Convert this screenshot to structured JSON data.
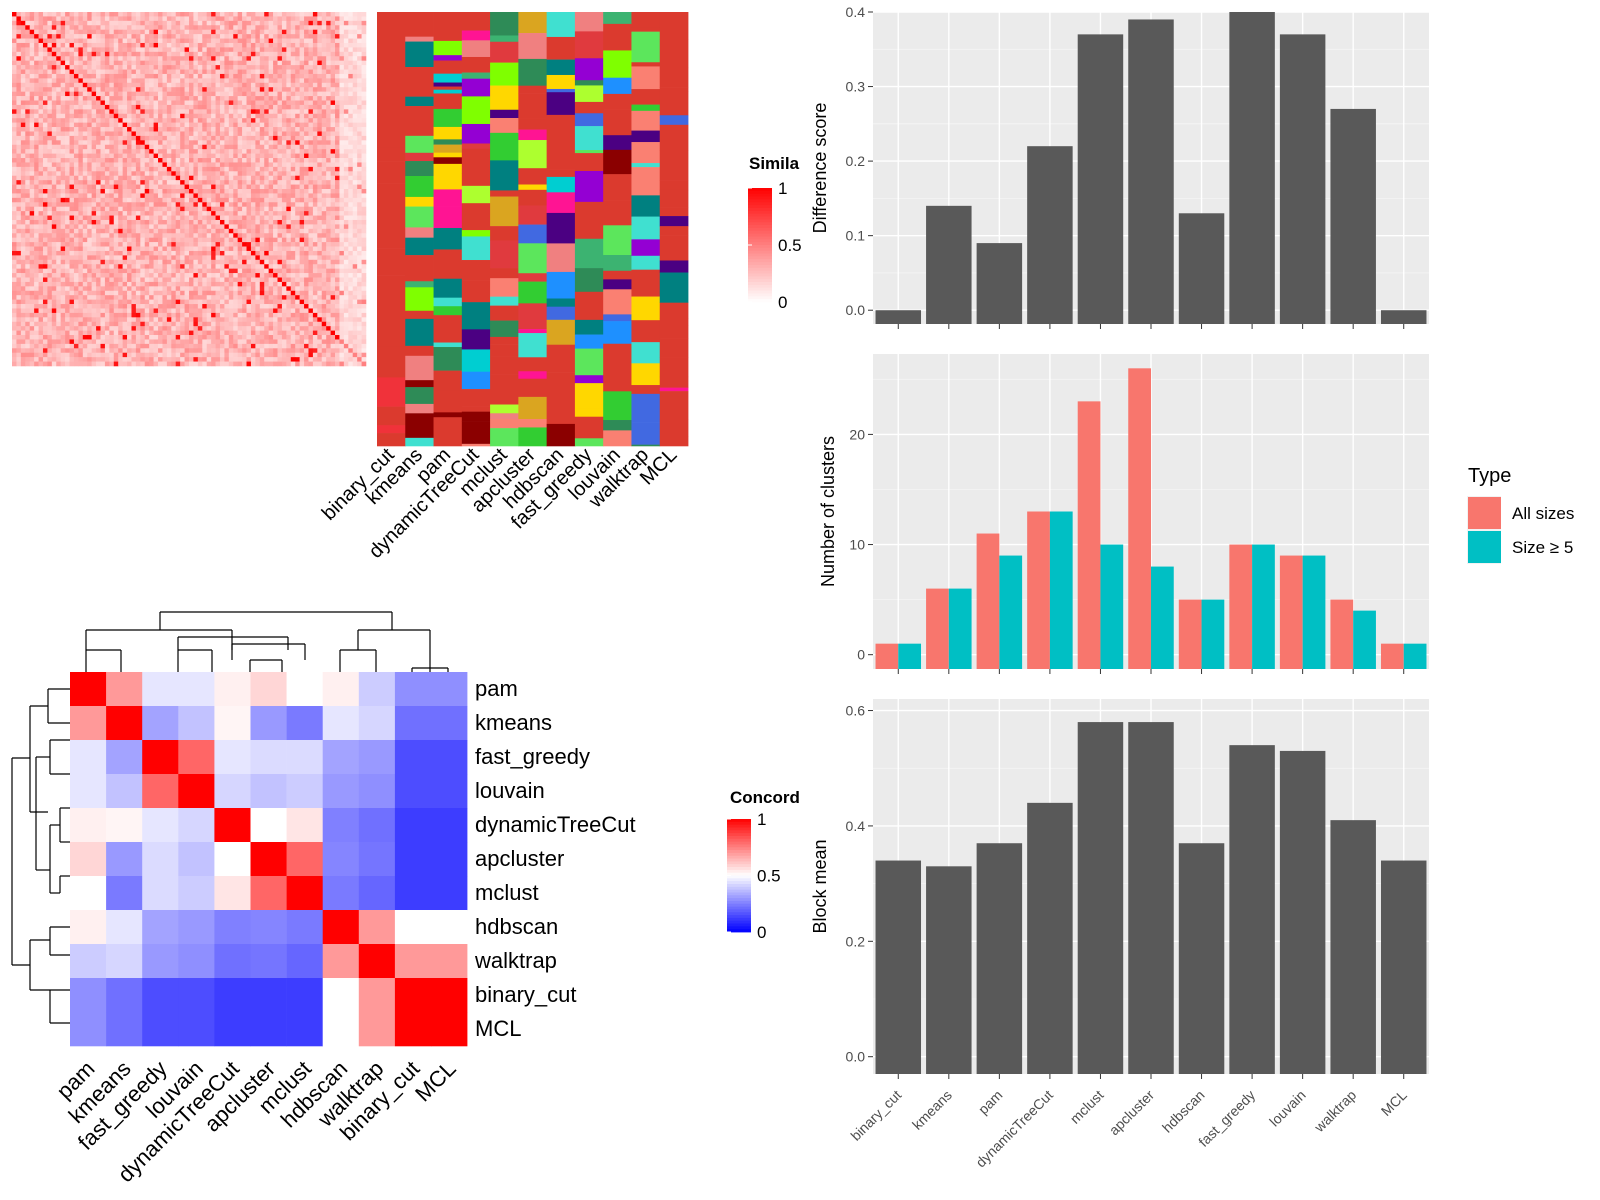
{
  "similarity_heatmap": {
    "legend_title": "Simila",
    "legend_ticks": [
      "1",
      "0.5",
      "0"
    ],
    "annotation_columns": [
      "binary_cut",
      "kmeans",
      "pam",
      "dynamicTreeCut",
      "mclust",
      "apcluster",
      "hdbscan",
      "fast_greedy",
      "louvain",
      "walktrap",
      "MCL"
    ]
  },
  "concordance_heatmap": {
    "legend_title": "Concord",
    "legend_ticks": [
      "1",
      "0.5",
      "0"
    ],
    "row_labels": [
      "pam",
      "kmeans",
      "fast_greedy",
      "louvain",
      "dynamicTreeCut",
      "apcluster",
      "mclust",
      "hdbscan",
      "walktrap",
      "binary_cut",
      "MCL"
    ],
    "col_labels": [
      "pam",
      "kmeans",
      "fast_greedy",
      "louvain",
      "dynamicTreeCut",
      "apcluster",
      "mclust",
      "hdbscan",
      "walktrap",
      "binary_cut",
      "MCL"
    ],
    "values": [
      [
        1.0,
        0.7,
        0.45,
        0.45,
        0.53,
        0.58,
        0.5,
        0.53,
        0.4,
        0.28,
        0.28
      ],
      [
        0.7,
        1.0,
        0.32,
        0.38,
        0.52,
        0.3,
        0.24,
        0.45,
        0.42,
        0.22,
        0.22
      ],
      [
        0.45,
        0.32,
        1.0,
        0.8,
        0.45,
        0.43,
        0.43,
        0.32,
        0.3,
        0.15,
        0.15
      ],
      [
        0.45,
        0.38,
        0.8,
        1.0,
        0.42,
        0.38,
        0.4,
        0.3,
        0.28,
        0.15,
        0.15
      ],
      [
        0.53,
        0.52,
        0.45,
        0.42,
        1.0,
        0.5,
        0.55,
        0.25,
        0.22,
        0.12,
        0.12
      ],
      [
        0.58,
        0.3,
        0.43,
        0.38,
        0.5,
        1.0,
        0.8,
        0.26,
        0.23,
        0.12,
        0.12
      ],
      [
        0.5,
        0.24,
        0.43,
        0.4,
        0.55,
        0.8,
        1.0,
        0.24,
        0.2,
        0.12,
        0.12
      ],
      [
        0.53,
        0.45,
        0.32,
        0.3,
        0.25,
        0.26,
        0.24,
        1.0,
        0.7,
        0.5,
        0.5
      ],
      [
        0.4,
        0.42,
        0.3,
        0.28,
        0.22,
        0.23,
        0.2,
        0.7,
        1.0,
        0.7,
        0.7
      ],
      [
        0.28,
        0.22,
        0.15,
        0.15,
        0.12,
        0.12,
        0.12,
        0.5,
        0.7,
        1.0,
        1.0
      ],
      [
        0.28,
        0.22,
        0.15,
        0.15,
        0.12,
        0.12,
        0.12,
        0.5,
        0.7,
        1.0,
        1.0
      ]
    ]
  },
  "colors": {
    "bar_gray": "#595959",
    "all_sizes": "#F8766D",
    "size_ge_5": "#00BFC4",
    "panel_bg": "#EBEBEB",
    "heat_high": "#FF0000",
    "heat_low_blue": "#0000FF"
  },
  "chart_data": [
    {
      "type": "bar",
      "categories": [
        "binary_cut",
        "kmeans",
        "pam",
        "dynamicTreeCut",
        "mclust",
        "apcluster",
        "hdbscan",
        "fast_greedy",
        "louvain",
        "walktrap",
        "MCL"
      ],
      "values": [
        0.0,
        0.14,
        0.09,
        0.22,
        0.37,
        0.39,
        0.13,
        0.4,
        0.37,
        0.27,
        0.0
      ],
      "ylabel": "Difference score",
      "ylim": [
        0,
        0.4
      ],
      "yticks": [
        "0.0",
        "0.1",
        "0.2",
        "0.3",
        "0.4"
      ],
      "grid": true
    },
    {
      "type": "bar",
      "categories": [
        "binary_cut",
        "kmeans",
        "pam",
        "dynamicTreeCut",
        "mclust",
        "apcluster",
        "hdbscan",
        "fast_greedy",
        "louvain",
        "walktrap",
        "MCL"
      ],
      "series": [
        {
          "name": "All sizes",
          "values": [
            1,
            6,
            11,
            13,
            23,
            26,
            5,
            10,
            9,
            5,
            1
          ]
        },
        {
          "name": "Size ≥ 5",
          "values": [
            1,
            6,
            9,
            13,
            10,
            8,
            5,
            10,
            9,
            4,
            1
          ]
        }
      ],
      "ylabel": "Number of clusters",
      "ylim": [
        0,
        26
      ],
      "yticks": [
        "0",
        "10",
        "20"
      ],
      "legend_title": "Type",
      "legend_position": "right",
      "grid": true
    },
    {
      "type": "bar",
      "categories": [
        "binary_cut",
        "kmeans",
        "pam",
        "dynamicTreeCut",
        "mclust",
        "apcluster",
        "hdbscan",
        "fast_greedy",
        "louvain",
        "walktrap",
        "MCL"
      ],
      "values": [
        0.34,
        0.33,
        0.37,
        0.44,
        0.58,
        0.58,
        0.37,
        0.54,
        0.53,
        0.41,
        0.34
      ],
      "ylabel": "Block mean",
      "ylim": [
        0,
        0.6
      ],
      "yticks": [
        "0.0",
        "0.2",
        "0.4",
        "0.6"
      ],
      "grid": true
    }
  ]
}
